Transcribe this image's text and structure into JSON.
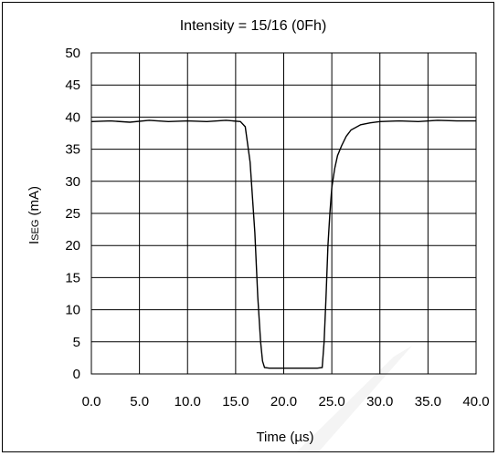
{
  "chart_data": {
    "type": "line",
    "title": "Intensity = 15/16 (0Fh)",
    "xlabel": "Time (µs)",
    "ylabel": {
      "main": "I",
      "sub": "SEG",
      "unit": " (mA)"
    },
    "xlim": [
      0,
      40
    ],
    "ylim": [
      0,
      50
    ],
    "x_ticks": [
      "0.0",
      "5.0",
      "10.0",
      "15.0",
      "20.0",
      "25.0",
      "30.0",
      "35.0",
      "40.0"
    ],
    "y_ticks": [
      "0",
      "5",
      "10",
      "15",
      "20",
      "25",
      "30",
      "35",
      "40",
      "45",
      "50"
    ],
    "grid": true,
    "legend": "none",
    "series": [
      {
        "x": [
          0,
          2,
          4,
          6,
          8,
          10,
          12,
          14,
          15.5,
          16.0,
          16.5,
          17.0,
          17.3,
          17.6,
          17.8,
          18.0,
          18.5,
          20,
          22,
          23.5,
          24.0,
          24.2,
          24.4,
          24.6,
          24.8,
          25.0,
          25.3,
          25.6,
          26.0,
          26.5,
          27.0,
          28.0,
          29.0,
          30.0,
          32,
          34,
          36,
          38,
          40
        ],
        "y": [
          39.3,
          39.4,
          39.2,
          39.5,
          39.3,
          39.4,
          39.3,
          39.5,
          39.3,
          38.5,
          33,
          22,
          12,
          5,
          2,
          1,
          0.9,
          0.9,
          0.9,
          0.9,
          1,
          5,
          12,
          20,
          25,
          29,
          32,
          34,
          35.5,
          37,
          38,
          38.8,
          39.1,
          39.3,
          39.4,
          39.3,
          39.5,
          39.4,
          39.4
        ]
      }
    ]
  }
}
